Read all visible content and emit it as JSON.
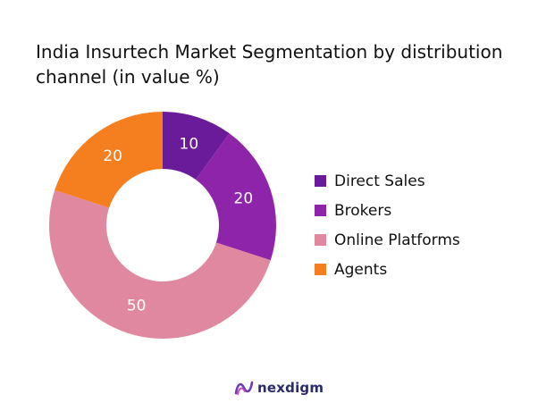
{
  "chart_data": {
    "type": "pie",
    "title": "India Insurtech Market Segmentation by distribution channel (in value %)",
    "categories": [
      "Direct Sales",
      "Brokers",
      "Online Platforms",
      "Agents"
    ],
    "values": [
      10,
      20,
      50,
      20
    ],
    "colors": [
      "#6a1b9a",
      "#8e24aa",
      "#e0889f",
      "#f57f1f"
    ],
    "donut": true,
    "legend_position": "right",
    "data_labels": [
      "10",
      "20",
      "50",
      "20"
    ]
  },
  "brand": {
    "name": "nexdigm",
    "logo_icon": "nexdigm-logo-icon"
  }
}
